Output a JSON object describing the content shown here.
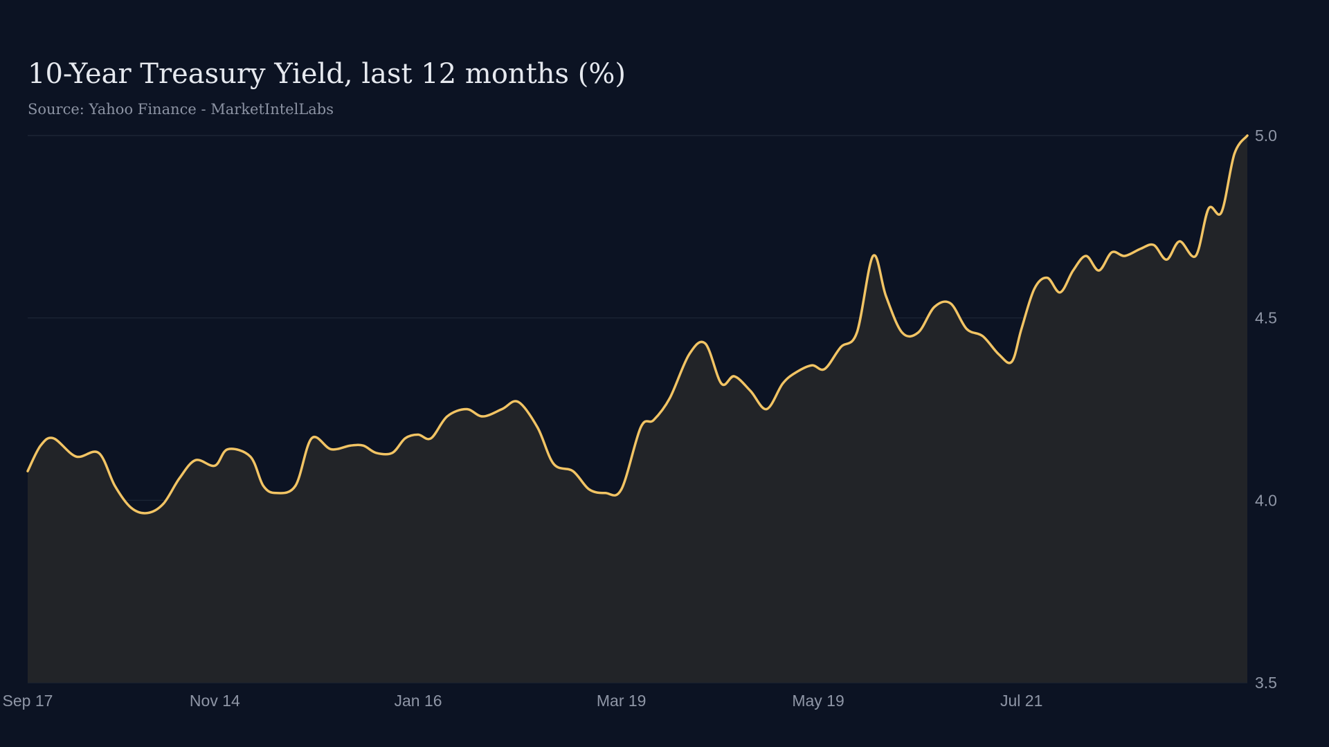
{
  "chart_data": {
    "type": "area",
    "title": "10-Year Treasury Yield, last 12 months (%)",
    "subtitle": "Source: Yahoo Finance - MarketIntelLabs",
    "xlabel": "",
    "ylabel": "",
    "ylim": [
      3.5,
      5.0
    ],
    "x_range": [
      "2023-09-17",
      "2024-09-29"
    ],
    "yticks": [
      {
        "value": 3.5,
        "label": "3.5"
      },
      {
        "value": 4.0,
        "label": "4.0"
      },
      {
        "value": 4.5,
        "label": "4.5"
      },
      {
        "value": 5.0,
        "label": "5.0"
      }
    ],
    "xticks": [
      {
        "date": "2023-09-17",
        "label": "Sep 17"
      },
      {
        "date": "2023-11-14",
        "label": "Nov 14"
      },
      {
        "date": "2024-01-16",
        "label": "Jan 16"
      },
      {
        "date": "2024-03-19",
        "label": "Mar 19"
      },
      {
        "date": "2024-05-19",
        "label": "May 19"
      },
      {
        "date": "2024-07-21",
        "label": "Jul 21"
      }
    ],
    "grid": true,
    "legend": "none",
    "line_color": "#f2c464",
    "fill_color": "#222428",
    "series": [
      {
        "x": [
          "2023-09-17",
          "2023-09-21",
          "2023-09-25",
          "2023-10-02",
          "2023-10-09",
          "2023-10-14",
          "2023-10-19",
          "2023-10-24",
          "2023-10-29",
          "2023-11-03",
          "2023-11-08",
          "2023-11-14",
          "2023-11-18",
          "2023-11-25",
          "2023-11-29",
          "2023-12-03",
          "2023-12-09",
          "2023-12-14",
          "2023-12-20",
          "2023-12-26",
          "2023-12-30",
          "2024-01-03",
          "2024-01-08",
          "2024-01-12",
          "2024-01-16",
          "2024-01-20",
          "2024-01-25",
          "2024-01-31",
          "2024-02-05",
          "2024-02-11",
          "2024-02-16",
          "2024-02-22",
          "2024-02-27",
          "2024-03-04",
          "2024-03-09",
          "2024-03-14",
          "2024-03-19",
          "2024-03-25",
          "2024-03-29",
          "2024-04-03",
          "2024-04-09",
          "2024-04-14",
          "2024-04-19",
          "2024-04-23",
          "2024-04-28",
          "2024-05-03",
          "2024-05-08",
          "2024-05-12",
          "2024-05-17",
          "2024-05-21",
          "2024-05-26",
          "2024-05-31",
          "2024-06-05",
          "2024-06-09",
          "2024-06-14",
          "2024-06-19",
          "2024-06-24",
          "2024-06-29",
          "2024-07-04",
          "2024-07-09",
          "2024-07-14",
          "2024-07-18",
          "2024-07-21",
          "2024-07-25",
          "2024-07-29",
          "2024-08-02",
          "2024-08-06",
          "2024-08-10",
          "2024-08-14",
          "2024-08-18",
          "2024-08-22",
          "2024-08-27",
          "2024-08-31",
          "2024-09-04",
          "2024-09-08",
          "2024-09-13",
          "2024-09-17",
          "2024-09-21",
          "2024-09-25",
          "2024-09-29"
        ],
        "y": [
          4.08,
          4.15,
          4.17,
          4.12,
          4.13,
          4.04,
          3.98,
          3.965,
          3.99,
          4.06,
          4.11,
          4.095,
          4.14,
          4.12,
          4.04,
          4.02,
          4.04,
          4.17,
          4.14,
          4.15,
          4.15,
          4.13,
          4.13,
          4.17,
          4.18,
          4.17,
          4.23,
          4.25,
          4.23,
          4.25,
          4.27,
          4.2,
          4.1,
          4.08,
          4.03,
          4.02,
          4.03,
          4.2,
          4.22,
          4.28,
          4.4,
          4.43,
          4.32,
          4.34,
          4.3,
          4.25,
          4.32,
          4.35,
          4.37,
          4.36,
          4.42,
          4.46,
          4.67,
          4.56,
          4.46,
          4.46,
          4.53,
          4.54,
          4.47,
          4.45,
          4.4,
          4.38,
          4.47,
          4.58,
          4.61,
          4.57,
          4.63,
          4.67,
          4.63,
          4.68,
          4.67,
          4.69,
          4.7,
          4.66,
          4.71,
          4.67,
          4.8,
          4.79,
          4.95,
          5.0
        ]
      }
    ]
  }
}
